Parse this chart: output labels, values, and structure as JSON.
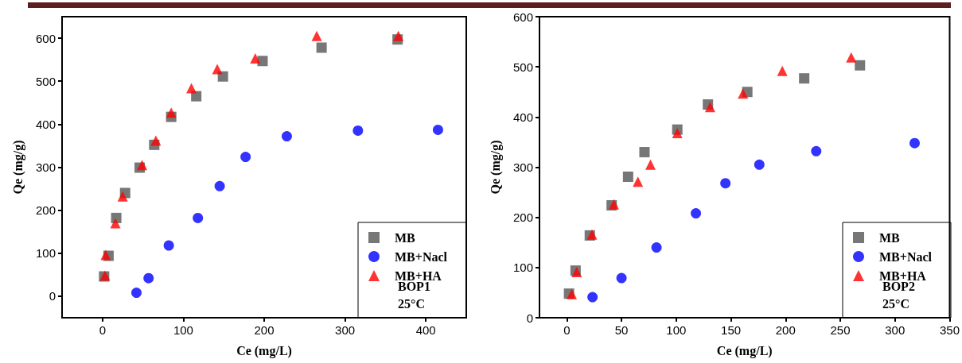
{
  "chart_data": [
    {
      "type": "scatter",
      "xlabel": "Ce (mg/L)",
      "ylabel": "Qe (mg/g)",
      "xlim": [
        -50,
        450
      ],
      "xticks": [
        0,
        100,
        200,
        300,
        400
      ],
      "ylim": [
        -50,
        650
      ],
      "yticks": [
        0,
        100,
        200,
        300,
        400,
        500,
        600
      ],
      "grid": false,
      "legend": "bottom right",
      "annotations": [
        "BOP1",
        "25°C"
      ],
      "series": [
        {
          "name": "MB",
          "color": "#555555",
          "marker": "square",
          "x": [
            2,
            7.5,
            17,
            28,
            46,
            64,
            85,
            116,
            149,
            198,
            271,
            365
          ],
          "values": [
            46,
            94,
            182,
            240,
            299,
            352,
            417,
            465,
            511,
            547,
            578,
            597
          ]
        },
        {
          "name": "MB+Nacl",
          "color": "#0000ff",
          "marker": "circle",
          "x": [
            42,
            57,
            82,
            118,
            145,
            177,
            228,
            316,
            415
          ],
          "values": [
            8,
            42,
            118,
            182,
            256,
            324,
            372,
            385,
            387
          ]
        },
        {
          "name": "MB+HA",
          "color": "#ff0000",
          "marker": "triangle",
          "x": [
            3,
            4,
            16,
            25,
            49,
            66,
            85,
            110,
            142,
            189,
            265,
            366
          ],
          "values": [
            48,
            96,
            170,
            232,
            305,
            362,
            427,
            484,
            528,
            553,
            605,
            605
          ]
        }
      ]
    },
    {
      "type": "scatter",
      "xlabel": "Ce (mg/L)",
      "ylabel": "Qe (mg/g)",
      "xlim": [
        -25,
        350
      ],
      "xticks": [
        0,
        50,
        100,
        150,
        200,
        250,
        300,
        350
      ],
      "ylim": [
        0,
        600
      ],
      "yticks": [
        0,
        100,
        200,
        300,
        400,
        500,
        600
      ],
      "grid": false,
      "legend": "bottom right",
      "annotations": [
        "BOP2",
        "25°C"
      ],
      "series": [
        {
          "name": "MB",
          "color": "#555555",
          "marker": "square",
          "x": [
            2,
            8,
            21,
            41,
            56,
            71,
            101,
            129,
            165,
            217,
            268
          ],
          "values": [
            48,
            94,
            164,
            224,
            281,
            330,
            375,
            425,
            450,
            477,
            503
          ]
        },
        {
          "name": "MB+Nacl",
          "color": "#0000ff",
          "marker": "circle",
          "x": [
            23.5,
            50,
            82,
            118,
            145,
            176,
            228,
            318
          ],
          "values": [
            41,
            79,
            140,
            208,
            268,
            305,
            332,
            348
          ]
        },
        {
          "name": "MB+HA",
          "color": "#ff0000",
          "marker": "triangle",
          "x": [
            4.5,
            9,
            23,
            43,
            65,
            76.5,
            101,
            131,
            161,
            197,
            260
          ],
          "values": [
            47,
            91,
            166,
            226,
            271,
            305,
            368,
            420,
            447,
            492,
            519
          ]
        }
      ]
    }
  ]
}
